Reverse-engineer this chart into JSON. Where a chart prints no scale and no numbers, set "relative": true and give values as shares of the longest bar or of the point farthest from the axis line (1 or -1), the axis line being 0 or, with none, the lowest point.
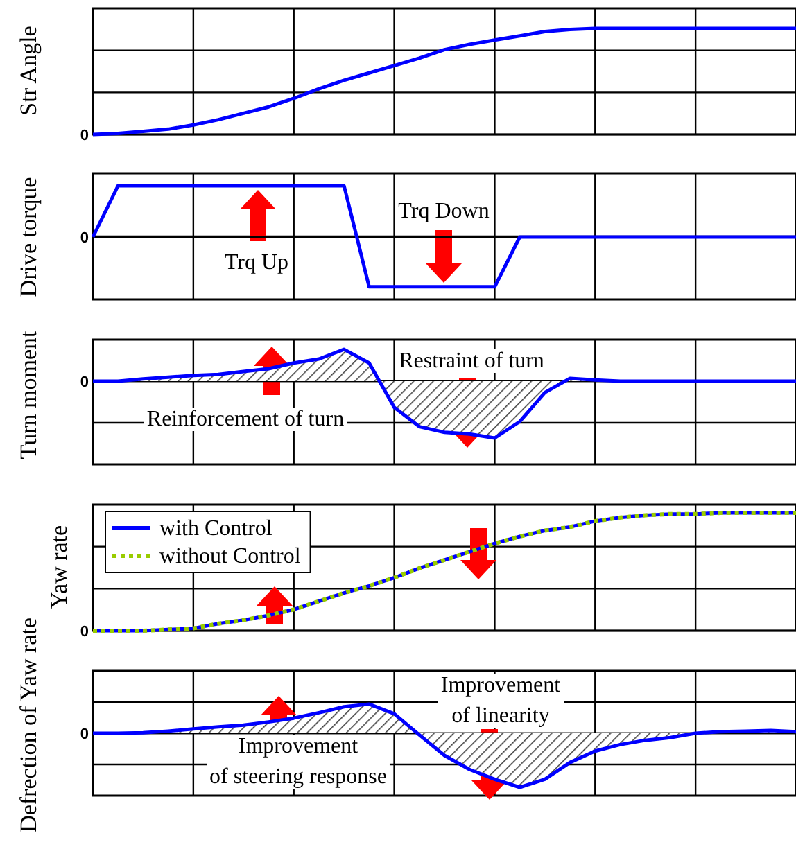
{
  "chart_data": [
    {
      "type": "line",
      "ylabel": "Str Angle",
      "relative": true,
      "annotations": [
        "0"
      ],
      "grid": true,
      "categories": [
        null,
        null,
        null,
        null,
        null,
        null,
        null,
        null,
        null,
        null,
        null,
        null,
        null,
        null,
        null,
        null,
        null,
        null,
        null,
        null,
        null,
        null,
        null,
        null,
        null,
        null,
        null,
        null,
        null
      ],
      "series": [
        {
          "color": "#0000ff",
          "values": [
            0,
            0.01,
            0.03,
            0.05,
            0.09,
            0.14,
            0.2,
            0.26,
            0.34,
            0.43,
            0.51,
            0.58,
            0.65,
            0.72,
            0.8,
            0.85,
            0.89,
            0.93,
            0.97,
            0.99,
            1,
            1,
            1,
            1,
            1,
            1,
            1,
            1,
            1
          ]
        }
      ]
    },
    {
      "type": "line",
      "ylabel": "Drive torque",
      "relative": true,
      "grid": true,
      "categories": [
        null,
        null,
        null,
        null,
        null,
        null,
        null,
        null,
        null,
        null,
        null,
        null,
        null,
        null,
        null,
        null,
        null,
        null,
        null,
        null,
        null,
        null,
        null,
        null,
        null,
        null,
        null,
        null,
        null
      ],
      "annotations": [
        "Trq Up",
        "Trq Down",
        "0"
      ],
      "series": [
        {
          "color": "#0000ff",
          "values": [
            0,
            1,
            1,
            1,
            1,
            1,
            1,
            1,
            1,
            1,
            1,
            -0.97,
            -0.97,
            -0.97,
            -0.97,
            -0.97,
            -0.97,
            0,
            0,
            0,
            0,
            0,
            0,
            0,
            0,
            0,
            0,
            0,
            0
          ]
        }
      ]
    },
    {
      "type": "area",
      "ylabel": "Turn moment",
      "relative": true,
      "grid": true,
      "categories": [
        null,
        null,
        null,
        null,
        null,
        null,
        null,
        null,
        null,
        null,
        null,
        null,
        null,
        null,
        null,
        null,
        null,
        null,
        null,
        null,
        null,
        null,
        null,
        null,
        null,
        null,
        null,
        null,
        null
      ],
      "annotations": [
        "Restraint of turn",
        "Reinforcement of turn",
        "0"
      ],
      "series": [
        {
          "color": "#0000ff",
          "values": [
            0,
            0,
            0.04,
            0.07,
            0.1,
            0.12,
            0.17,
            0.22,
            0.32,
            0.39,
            0.56,
            0.32,
            -0.46,
            -0.8,
            -0.9,
            -0.93,
            -1,
            -0.71,
            -0.2,
            0.05,
            0.02,
            0,
            0,
            0,
            0,
            0,
            0,
            0,
            0
          ]
        }
      ]
    },
    {
      "type": "line",
      "ylabel": "Yaw rate",
      "relative": true,
      "annotations": [
        "0"
      ],
      "grid": true,
      "legend": "top left",
      "categories": [
        null,
        null,
        null,
        null,
        null,
        null,
        null,
        null,
        null,
        null,
        null,
        null,
        null,
        null,
        null,
        null,
        null,
        null,
        null,
        null,
        null,
        null,
        null,
        null,
        null,
        null,
        null,
        null,
        null
      ],
      "series": [
        {
          "name": "with Control",
          "color": "#0000ff",
          "line_style": "solid",
          "values": [
            0,
            0,
            0,
            0.01,
            0.02,
            0.06,
            0.09,
            0.13,
            0.18,
            0.25,
            0.32,
            0.38,
            0.45,
            0.53,
            0.6,
            0.67,
            0.74,
            0.8,
            0.85,
            0.88,
            0.93,
            0.96,
            0.98,
            0.99,
            0.99,
            1,
            1,
            1,
            1
          ]
        },
        {
          "name": "without Control",
          "color": "#99cc00",
          "line_style": "dotted",
          "values": [
            0,
            0,
            0,
            0.01,
            0.02,
            0.06,
            0.09,
            0.13,
            0.18,
            0.25,
            0.32,
            0.38,
            0.45,
            0.53,
            0.6,
            0.67,
            0.74,
            0.8,
            0.85,
            0.88,
            0.93,
            0.96,
            0.98,
            0.99,
            0.99,
            1,
            1,
            1,
            1
          ]
        }
      ]
    },
    {
      "type": "area",
      "ylabel": "Defrection of Yaw rate",
      "relative": true,
      "grid": true,
      "categories": [
        null,
        null,
        null,
        null,
        null,
        null,
        null,
        null,
        null,
        null,
        null,
        null,
        null,
        null,
        null,
        null,
        null,
        null,
        null,
        null,
        null,
        null,
        null,
        null,
        null,
        null,
        null,
        null,
        null
      ],
      "annotations": [
        "Improvement\nof linearity",
        "Improvement\nof steering response",
        "0"
      ],
      "series": [
        {
          "color": "#0000ff",
          "values": [
            0,
            0,
            0.01,
            0.04,
            0.08,
            0.12,
            0.15,
            0.21,
            0.28,
            0.38,
            0.49,
            0.54,
            0.36,
            -0.03,
            -0.41,
            -0.67,
            -0.85,
            -1,
            -0.85,
            -0.54,
            -0.33,
            -0.21,
            -0.13,
            -0.08,
            0,
            0.03,
            0.04,
            0.05,
            0.03
          ]
        }
      ]
    }
  ]
}
